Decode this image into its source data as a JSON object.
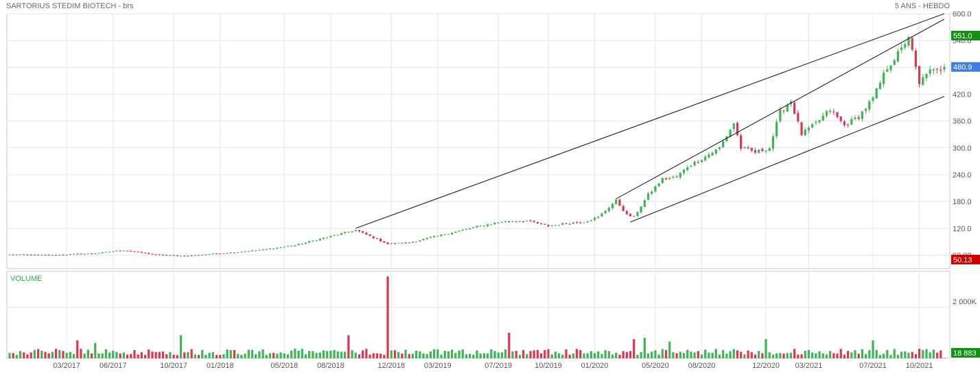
{
  "header": {
    "title": "SARTORIUS STEDIM BIOTECH - brs",
    "period": "5 ANS - HEBDO"
  },
  "colors": {
    "up": "#3cb552",
    "down": "#de3551",
    "grid": "#e4e4e4",
    "border": "#c8c8c8",
    "volume_label": "#2eaa4a",
    "high_badge": "#149114",
    "last_badge": "#3d7ee0",
    "low_badge": "#cc0000"
  },
  "chart_data": [
    {
      "type": "candlestick",
      "title": "SARTORIUS STEDIM BIOTECH - brs",
      "timeframe": "5 ANS - HEBDO",
      "ylim": [
        30,
        600
      ],
      "y_ticks": [
        "600.0",
        "540.0",
        "480.0",
        "420.0",
        "360.0",
        "300.0",
        "240.0",
        "180.0",
        "120.0",
        "60.00"
      ],
      "y_tick_values": [
        600,
        540,
        480,
        420,
        360,
        300,
        240,
        180,
        120,
        60
      ],
      "x_ticks": [
        "03/2017",
        "06/2017",
        "10/2017",
        "01/2018",
        "05/2018",
        "08/2018",
        "12/2018",
        "03/2019",
        "07/2019",
        "10/2019",
        "01/2020",
        "05/2020",
        "08/2020",
        "12/2020",
        "03/2021",
        "07/2021",
        "10/2021"
      ],
      "x_tick_dates": [
        "2017-03-06",
        "2017-06-05",
        "2017-10-02",
        "2018-01-01",
        "2018-05-07",
        "2018-08-06",
        "2018-12-03",
        "2019-03-04",
        "2019-07-01",
        "2019-10-07",
        "2020-01-06",
        "2020-05-04",
        "2020-08-03",
        "2020-12-07",
        "2021-03-01",
        "2021-07-05",
        "2021-10-04"
      ],
      "date_range": [
        "2016-11-14",
        "2021-11-22"
      ],
      "badges": {
        "high": "551.0",
        "last": "480.9",
        "low": "50.13"
      },
      "anchors": [
        [
          "2016-11-14",
          61
        ],
        [
          "2017-02-06",
          60
        ],
        [
          "2017-05-01",
          64
        ],
        [
          "2017-06-26",
          71
        ],
        [
          "2017-08-28",
          61
        ],
        [
          "2017-10-23",
          58
        ],
        [
          "2018-01-15",
          65
        ],
        [
          "2018-03-26",
          72
        ],
        [
          "2018-05-28",
          82
        ],
        [
          "2018-07-30",
          100
        ],
        [
          "2018-09-24",
          116
        ],
        [
          "2018-10-29",
          99
        ],
        [
          "2018-11-26",
          85
        ],
        [
          "2019-01-07",
          88
        ],
        [
          "2019-03-04",
          103
        ],
        [
          "2019-05-13",
          122
        ],
        [
          "2019-07-08",
          135
        ],
        [
          "2019-08-26",
          137
        ],
        [
          "2019-10-07",
          125
        ],
        [
          "2019-11-04",
          130
        ],
        [
          "2019-12-16",
          135
        ],
        [
          "2020-01-13",
          145
        ],
        [
          "2020-02-17",
          182
        ],
        [
          "2020-03-09",
          150
        ],
        [
          "2020-03-23",
          145
        ],
        [
          "2020-04-20",
          195
        ],
        [
          "2020-05-18",
          230
        ],
        [
          "2020-06-15",
          235
        ],
        [
          "2020-07-06",
          258
        ],
        [
          "2020-08-10",
          280
        ],
        [
          "2020-09-07",
          300
        ],
        [
          "2020-10-05",
          355
        ],
        [
          "2020-10-19",
          300
        ],
        [
          "2020-11-16",
          290
        ],
        [
          "2020-12-14",
          300
        ],
        [
          "2021-01-04",
          380
        ],
        [
          "2021-01-25",
          405
        ],
        [
          "2021-02-15",
          330
        ],
        [
          "2021-03-15",
          355
        ],
        [
          "2021-04-12",
          385
        ],
        [
          "2021-05-10",
          350
        ],
        [
          "2021-06-07",
          370
        ],
        [
          "2021-07-05",
          410
        ],
        [
          "2021-08-02",
          480
        ],
        [
          "2021-08-30",
          520
        ],
        [
          "2021-09-13",
          551
        ],
        [
          "2021-10-04",
          440
        ],
        [
          "2021-10-18",
          470
        ],
        [
          "2021-11-08",
          472
        ],
        [
          "2021-11-22",
          480.9
        ]
      ],
      "trendlines": [
        {
          "from": [
            "2018-09-24",
            120
          ],
          "to": [
            "2021-11-22",
            600
          ]
        },
        {
          "from": [
            "2020-02-17",
            186
          ],
          "to": [
            "2021-11-22",
            588
          ]
        },
        {
          "from": [
            "2020-03-16",
            134
          ],
          "to": [
            "2021-11-22",
            415
          ]
        }
      ]
    },
    {
      "type": "bar",
      "title": "VOLUME",
      "y_ticks": [
        "2 000K"
      ],
      "y_tick_values": [
        2000000
      ],
      "ylim": [
        0,
        3400000
      ],
      "last_value": "18 883",
      "typical_volume": 250000,
      "peaks": [
        [
          "2017-03-27",
          700000
        ],
        [
          "2017-05-01",
          600000
        ],
        [
          "2017-10-16",
          900000
        ],
        [
          "2018-09-10",
          900000
        ],
        [
          "2018-11-26",
          3200000
        ],
        [
          "2019-07-22",
          1000000
        ],
        [
          "2020-03-23",
          750000
        ],
        [
          "2020-04-13",
          800000
        ],
        [
          "2020-06-01",
          650000
        ],
        [
          "2020-12-07",
          750000
        ],
        [
          "2021-07-05",
          700000
        ]
      ]
    }
  ]
}
